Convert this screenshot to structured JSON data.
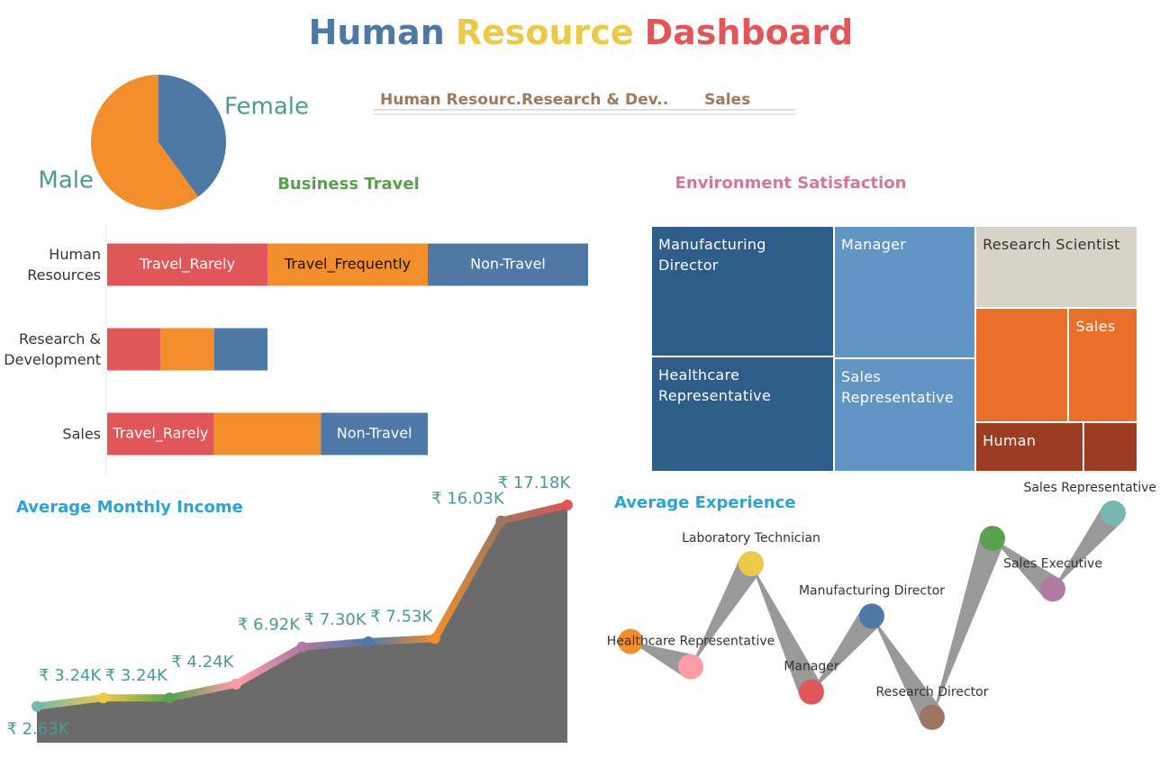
{
  "title_words": [
    {
      "text": "Human",
      "color": "#4e79a7"
    },
    {
      "text": "Resource",
      "color": "#edc948"
    },
    {
      "text": "Dashboard",
      "color": "#e15759"
    }
  ],
  "department_filter": [
    "Human Resourc..",
    "Research & Dev..",
    "Sales"
  ],
  "chart_data": [
    {
      "type": "pie",
      "categories": [
        "Female",
        "Male"
      ],
      "values": [
        40,
        60
      ],
      "colors": [
        "#4e79a7",
        "#f28e2b"
      ]
    },
    {
      "type": "stacked_bar",
      "title": "Business Travel",
      "categories": [
        "Human Resources",
        "Research & Development",
        "Sales"
      ],
      "series": [
        {
          "name": "Travel_Rarely",
          "color": "#e15759",
          "values": [
            3,
            1,
            2
          ]
        },
        {
          "name": "Travel_Frequently",
          "color": "#f28e2b",
          "values": [
            3,
            1,
            2
          ]
        },
        {
          "name": "Non-Travel",
          "color": "#4e79a7",
          "values": [
            3,
            1,
            2
          ]
        }
      ]
    },
    {
      "type": "treemap",
      "title": "Environment Satisfaction",
      "categories": [
        "Manufacturing Director",
        "Healthcare Representative",
        "Manager",
        "Sales Representative",
        "Research Scientist",
        null,
        "Sales",
        "Human",
        null
      ],
      "values": [
        294,
        260,
        231,
        198,
        164,
        131,
        97,
        66,
        33
      ],
      "colors": [
        "#2e5d8a",
        "#2e5d8a",
        "#6095c4",
        "#6095c4",
        "#d7d3c6",
        "#e8702a",
        "#e8702a",
        "#9c3d22",
        "#9c3d22"
      ]
    },
    {
      "type": "area",
      "title": "Average Monthly Income",
      "values": [
        2630,
        3240,
        3240,
        4240,
        6920,
        7300,
        7530,
        16030,
        17180
      ],
      "value_labels": [
        "₹ 2.63K",
        "₹ 3.24K",
        "₹ 3.24K",
        "₹ 4.24K",
        "₹ 6.92K",
        "₹ 7.30K",
        "₹ 7.53K",
        "₹ 16.03K",
        "₹ 17.18K"
      ],
      "colors": [
        "#76b7b2",
        "#edc948",
        "#59a14f",
        "#ff9da7",
        "#b07aa1",
        "#4e79a7",
        "#f28e2b",
        "#9c755f",
        "#e15759"
      ]
    },
    {
      "type": "scatter",
      "title": "Average Experience",
      "categories": [
        null,
        "Healthcare Representative",
        "Laboratory Technician",
        "Manager",
        "Manufacturing Director",
        "Research Director",
        null,
        "Sales Executive",
        "Sales Representative"
      ],
      "values": [
        6.9,
        5.5,
        11.2,
        4.1,
        8.3,
        2.7,
        12.6,
        9.8,
        14.0
      ],
      "colors": [
        "#f28e2b",
        "#ff9da7",
        "#edc948",
        "#e15759",
        "#4e79a7",
        "#9c755f",
        "#59a14f",
        "#b07aa1",
        "#76b7b2"
      ]
    }
  ]
}
